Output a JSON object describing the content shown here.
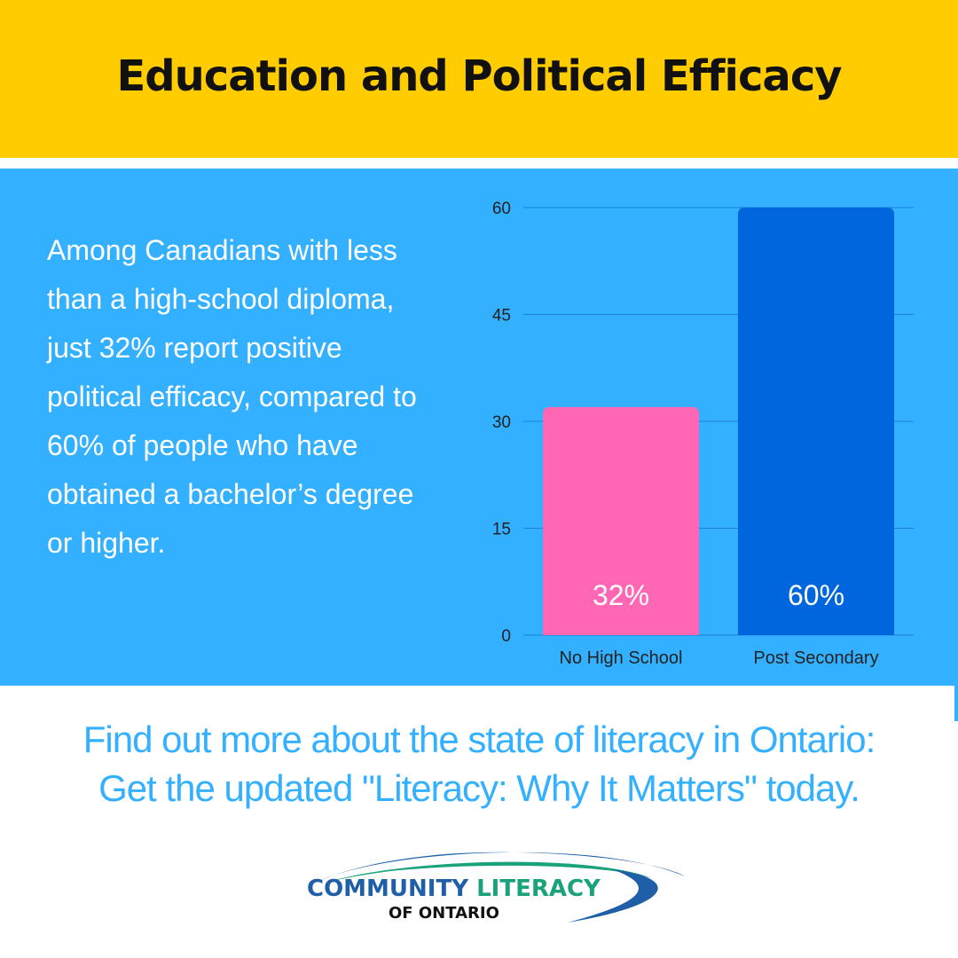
{
  "header": {
    "title": "Education and Political Efficacy"
  },
  "body": {
    "lines": [
      "Among Canadians with less",
      "than a high-school diploma,",
      "just 32% report positive",
      "political efficacy, compared to",
      "60% of people who have",
      "obtained a bachelor’s degree",
      "or higher."
    ]
  },
  "footer": {
    "line1": "Find out more about the state of literacy in Ontario:",
    "line2": "Get the updated \"Literacy: Why It Matters\" today."
  },
  "logo": {
    "name": "COMMUNITY LITERACY",
    "sub": "OF ONTARIO"
  },
  "colors": {
    "header_bg": "#ffcc00",
    "panel_bg": "#33b0ff",
    "bar_no_high_school": "#ff66b3",
    "bar_post_secondary": "#0066dd",
    "footer_text": "#33b0ff",
    "logo_blue": "#1f5fa8",
    "logo_green": "#1aa37a"
  },
  "chart_data": {
    "type": "bar",
    "categories": [
      "No High School",
      "Post Secondary"
    ],
    "values": [
      32,
      60
    ],
    "data_labels": [
      "32%",
      "60%"
    ],
    "ylim": [
      0,
      60
    ],
    "yticks": [
      0,
      15,
      30,
      45,
      60
    ],
    "grid": true,
    "title": "",
    "xlabel": "",
    "ylabel": ""
  }
}
